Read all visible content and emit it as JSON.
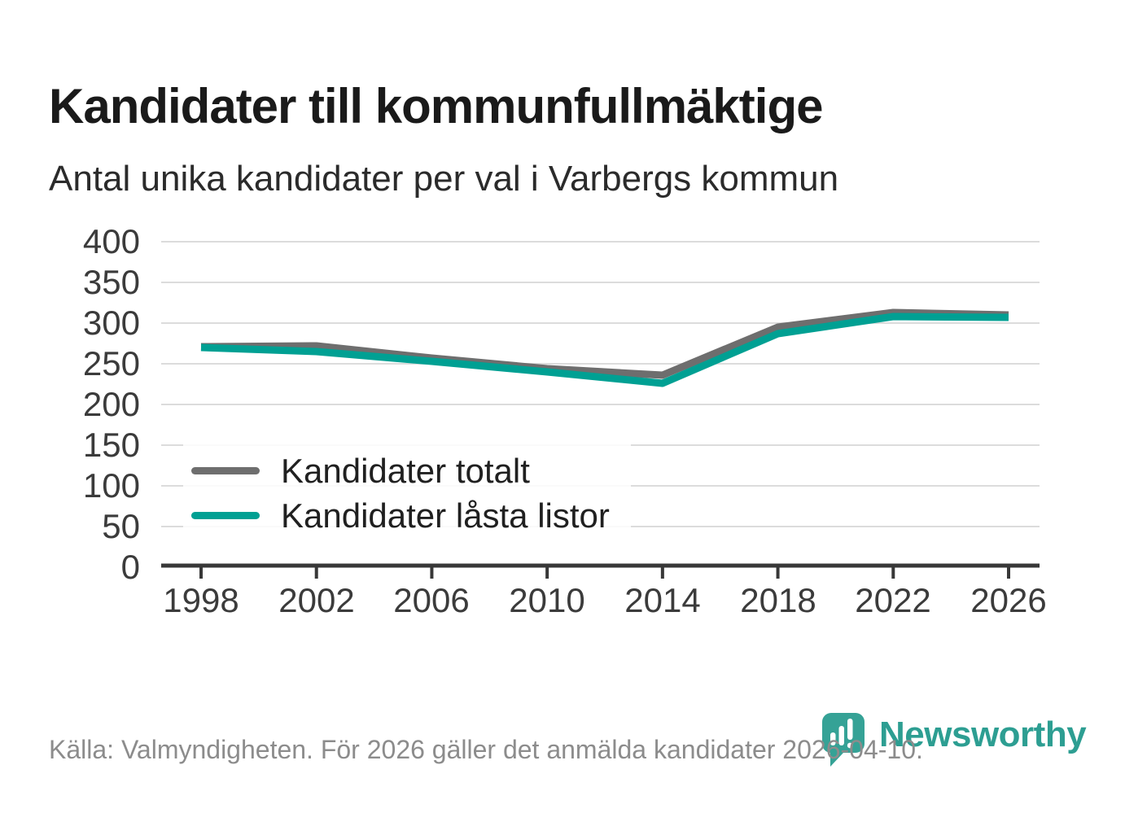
{
  "header": {
    "title": "Kandidater till kommunfullmäktige",
    "subtitle": "Antal unika kandidater per val i Varbergs kommun"
  },
  "footer": {
    "source": "Källa: Valmyndigheten. För 2026 gäller det anmälda kandidater 2026-04-10.",
    "brand": "Newsworthy"
  },
  "colors": {
    "title_text": "#1a1a1a",
    "axis_text": "#3b3b3b",
    "axis_line": "#383838",
    "gridline": "#dcdcdc",
    "series_total": "#6e6e6e",
    "series_locked": "#00a093",
    "brand_teal": "#2d9e92",
    "source_text": "#8c8c8c"
  },
  "chart_data": {
    "type": "line",
    "title": "Kandidater till kommunfullmäktige",
    "subtitle": "Antal unika kandidater per val i Varbergs kommun",
    "categories": [
      "1998",
      "2002",
      "2006",
      "2010",
      "2014",
      "2018",
      "2022",
      "2026"
    ],
    "series": [
      {
        "name": "Kandidater totalt",
        "color": "#6e6e6e",
        "values": [
          271,
          272,
          257,
          244,
          236,
          295,
          313,
          310
        ]
      },
      {
        "name": "Kandidater låsta listor",
        "color": "#00a093",
        "values": [
          270,
          265,
          253,
          240,
          226,
          287,
          308,
          307
        ]
      }
    ],
    "xlabel": "",
    "ylabel": "",
    "ylim": [
      0,
      400
    ],
    "yticks": [
      400,
      350,
      300,
      250,
      200,
      150,
      100,
      50,
      0
    ],
    "grid": true,
    "legend_position": "inside-bottom-left"
  }
}
